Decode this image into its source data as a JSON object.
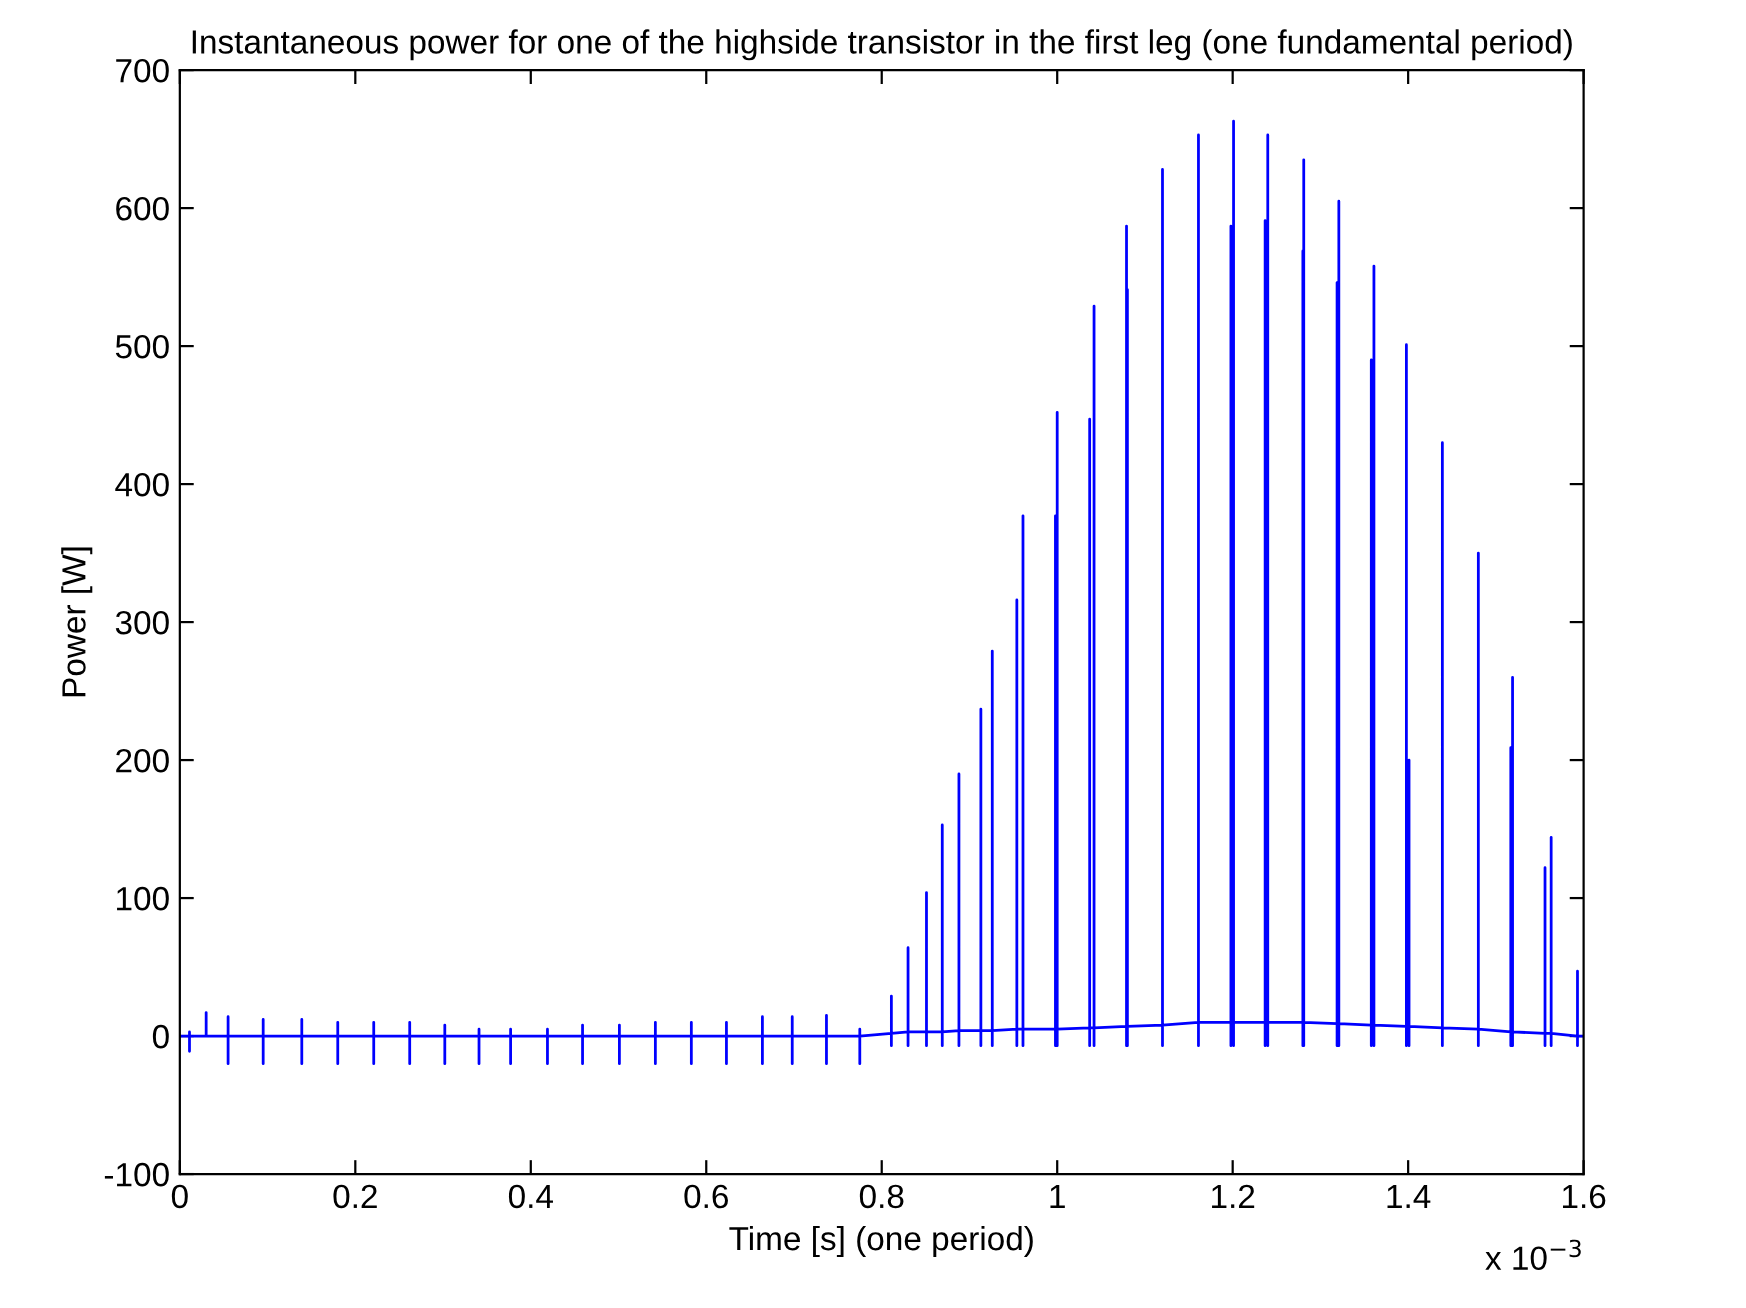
{
  "chart_data": {
    "type": "line",
    "title": "Instantaneous power for one of the highside transistor in the first leg (one fundamental period)",
    "xlabel": "Time [s] (one period)",
    "ylabel": "Power [W]",
    "annotations": [
      "x 10$^{−3}$"
    ],
    "xlim": [
      0,
      1.6
    ],
    "xticks": [
      0,
      0.2,
      0.4,
      0.6,
      0.8,
      1,
      1.2,
      1.4,
      1.6
    ],
    "ylim": [
      -100,
      700
    ],
    "yticks": [
      -100,
      0,
      100,
      200,
      300,
      400,
      500,
      600,
      700
    ],
    "grid": false,
    "legend": false,
    "marker": "none",
    "line_style": "solid",
    "series": [
      {
        "color": "#0000ff",
        "x": [
          0,
          0.011,
          0.011,
          0.011,
          0.011,
          0.03,
          0.03,
          0.03,
          0.055,
          0.055,
          0.055,
          0.055,
          0.095,
          0.095,
          0.095,
          0.095,
          0.139,
          0.139,
          0.139,
          0.139,
          0.18,
          0.18,
          0.18,
          0.18,
          0.221,
          0.221,
          0.221,
          0.221,
          0.262,
          0.262,
          0.262,
          0.262,
          0.302,
          0.302,
          0.302,
          0.302,
          0.341,
          0.341,
          0.341,
          0.341,
          0.377,
          0.377,
          0.377,
          0.377,
          0.419,
          0.419,
          0.419,
          0.419,
          0.459,
          0.459,
          0.459,
          0.459,
          0.501,
          0.501,
          0.501,
          0.501,
          0.542,
          0.542,
          0.542,
          0.542,
          0.583,
          0.583,
          0.583,
          0.583,
          0.623,
          0.623,
          0.623,
          0.623,
          0.664,
          0.664,
          0.664,
          0.664,
          0.698,
          0.698,
          0.698,
          0.698,
          0.737,
          0.737,
          0.737,
          0.737,
          0.775,
          0.775,
          0.775,
          0.775,
          0.811,
          0.811,
          0.811,
          0.811,
          0.83,
          0.83,
          0.83,
          0.83,
          0.851,
          0.851,
          0.851,
          0.851,
          0.869,
          0.869,
          0.869,
          0.869,
          0.888,
          0.888,
          0.888,
          0.888,
          0.913,
          0.913,
          0.913,
          0.913,
          0.926,
          0.926,
          0.926,
          0.926,
          0.954,
          0.954,
          0.954,
          0.954,
          0.961,
          0.961,
          0.961,
          0.961,
          0.998,
          0.998,
          0.998,
          0.998,
          1.0,
          1.0,
          1.0,
          1.0,
          1.037,
          1.037,
          1.037,
          1.037,
          1.042,
          1.042,
          1.042,
          1.042,
          1.079,
          1.079,
          1.079,
          1.079,
          1.08,
          1.08,
          1.08,
          1.08,
          1.12,
          1.12,
          1.12,
          1.12,
          1.161,
          1.161,
          1.161,
          1.161,
          1.198,
          1.198,
          1.198,
          1.198,
          1.201,
          1.201,
          1.201,
          1.201,
          1.237,
          1.237,
          1.237,
          1.237,
          1.24,
          1.24,
          1.24,
          1.24,
          1.28,
          1.28,
          1.28,
          1.28,
          1.281,
          1.281,
          1.281,
          1.281,
          1.319,
          1.319,
          1.319,
          1.319,
          1.321,
          1.321,
          1.321,
          1.321,
          1.358,
          1.358,
          1.358,
          1.358,
          1.361,
          1.361,
          1.361,
          1.361,
          1.398,
          1.398,
          1.398,
          1.398,
          1.401,
          1.401,
          1.401,
          1.401,
          1.439,
          1.439,
          1.439,
          1.439,
          1.48,
          1.48,
          1.48,
          1.48,
          1.517,
          1.517,
          1.517,
          1.517,
          1.519,
          1.519,
          1.519,
          1.519,
          1.556,
          1.556,
          1.556,
          1.556,
          1.563,
          1.563,
          1.563,
          1.563,
          1.593,
          1.593,
          1.593,
          1.593,
          1.6
        ],
        "values": [
          0,
          0,
          3,
          -11,
          0,
          0,
          17,
          0,
          0,
          14,
          -20,
          0,
          0,
          12,
          -20,
          0,
          0,
          12,
          -20,
          0,
          0,
          10,
          -20,
          0,
          0,
          10,
          -20,
          0,
          0,
          10,
          -20,
          0,
          0,
          8,
          -20,
          0,
          0,
          5,
          -20,
          0,
          0,
          5,
          -20,
          0,
          0,
          5,
          -20,
          0,
          0,
          8,
          -20,
          0,
          0,
          8,
          -20,
          0,
          0,
          10,
          -20,
          0,
          0,
          10,
          -20,
          0,
          0,
          10,
          -20,
          0,
          0,
          14,
          -20,
          0,
          0,
          14,
          -20,
          0,
          0,
          15,
          -20,
          0,
          0,
          5,
          -20,
          0,
          2,
          29,
          -7,
          2,
          3,
          64,
          -7,
          3,
          3,
          104,
          -7,
          3,
          3,
          153,
          -7,
          3,
          4,
          190,
          -7,
          4,
          4,
          237,
          -7,
          4,
          4,
          279,
          -7,
          4,
          5,
          316,
          -7,
          5,
          5,
          377,
          -7,
          5,
          5,
          377,
          -7,
          5,
          5,
          452,
          -7,
          5,
          6,
          447,
          -7,
          6,
          6,
          529,
          -7,
          6,
          7,
          587,
          -7,
          7,
          7,
          541,
          -7,
          7,
          8,
          628,
          -7,
          8,
          10,
          653,
          -7,
          10,
          10,
          587,
          -7,
          10,
          10,
          663,
          -7,
          10,
          10,
          591,
          -7,
          10,
          10,
          653,
          -7,
          10,
          10,
          569,
          -7,
          10,
          10,
          635,
          -7,
          10,
          9,
          546,
          -7,
          9,
          9,
          605,
          -7,
          9,
          8,
          490,
          -7,
          8,
          8,
          558,
          -7,
          8,
          7,
          501,
          -7,
          7,
          7,
          200,
          -7,
          7,
          6,
          430,
          -7,
          6,
          5,
          350,
          -7,
          5,
          3,
          209,
          -7,
          3,
          3,
          260,
          -7,
          3,
          2,
          122,
          -7,
          2,
          2,
          144,
          -7,
          2,
          0,
          47,
          -7,
          0,
          0
        ]
      }
    ]
  }
}
